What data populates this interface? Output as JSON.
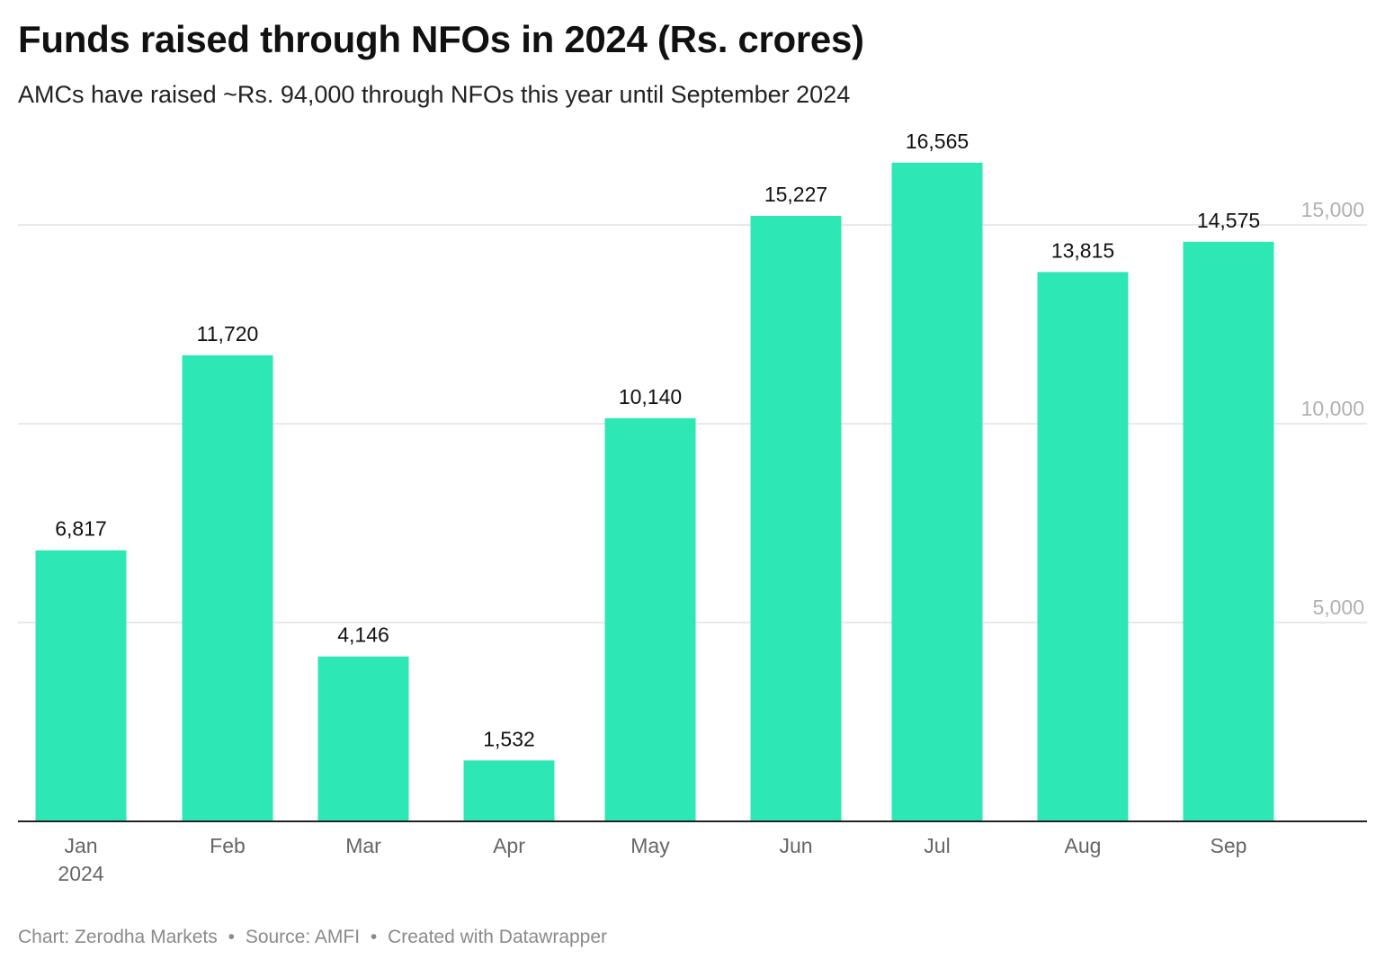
{
  "title": "Funds raised through NFOs in 2024 (Rs. crores)",
  "subtitle": "AMCs have raised ~Rs. 94,000 through NFOs this year until September 2024",
  "footer": {
    "chart": "Chart: Zerodha Markets",
    "source": "Source: AMFI",
    "credit": "Created with Datawrapper",
    "separator": "•"
  },
  "colors": {
    "bar": "#2de8b4",
    "gridline": "#e2e2e2",
    "axis": "#222222",
    "tick_text": "#b0b0b0",
    "category_text": "#666666",
    "value_text": "#111111"
  },
  "chart_data": {
    "type": "bar",
    "categories": [
      "Jan",
      "Feb",
      "Mar",
      "Apr",
      "May",
      "Jun",
      "Jul",
      "Aug",
      "Sep"
    ],
    "category_sublabels": [
      "2024",
      "",
      "",
      "",
      "",
      "",
      "",
      "",
      ""
    ],
    "values": [
      6817,
      11720,
      4146,
      1532,
      10140,
      15227,
      16565,
      13815,
      14575
    ],
    "value_labels": [
      "6,817",
      "11,720",
      "4,146",
      "1,532",
      "10,140",
      "15,227",
      "16,565",
      "13,815",
      "14,575"
    ],
    "yticks": [
      5000,
      10000,
      15000
    ],
    "ytick_labels": [
      "5,000",
      "10,000",
      "15,000"
    ],
    "ylim": [
      0,
      15000
    ],
    "y_axis_position": "right",
    "grid": true,
    "xlabel": "",
    "ylabel": ""
  }
}
